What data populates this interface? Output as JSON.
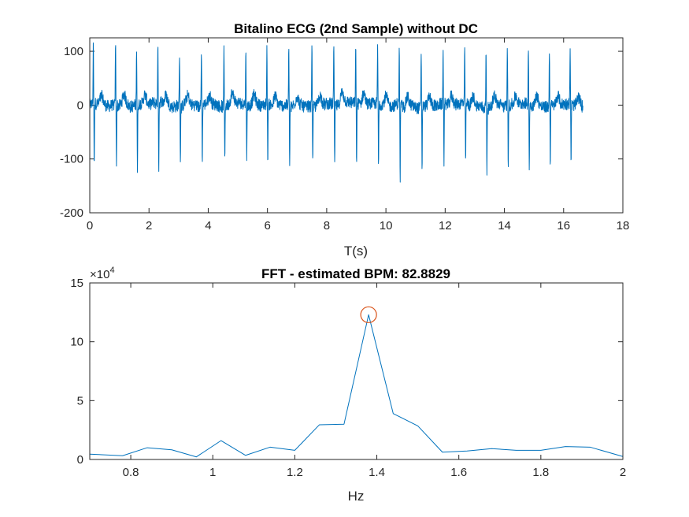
{
  "chart_data": [
    {
      "type": "line",
      "title": "Bitalino ECG (2nd Sample) without DC",
      "xlabel": "T(s)",
      "ylabel": "",
      "xlim": [
        0,
        18
      ],
      "ylim": [
        -200,
        125
      ],
      "xticks": [
        0,
        2,
        4,
        6,
        8,
        10,
        12,
        14,
        16,
        18
      ],
      "yticks": [
        -200,
        -100,
        0,
        100
      ],
      "color": "#0072BD",
      "signal": {
        "duration_s": 16.65,
        "beat_times": [
          0.12,
          0.87,
          1.58,
          2.3,
          3.03,
          3.77,
          4.53,
          5.27,
          5.98,
          6.72,
          7.5,
          8.24,
          8.98,
          9.72,
          10.45,
          11.19,
          11.93,
          12.66,
          13.38,
          14.1,
          14.81,
          15.52,
          16.22
        ],
        "beat_peaks": [
          118,
          117,
          108,
          100,
          99,
          102,
          100,
          104,
          101,
          104,
          121,
          104,
          100,
          105,
          103,
          104,
          103,
          104,
          100,
          104,
          107,
          104,
          105
        ],
        "beat_troughs": [
          -120,
          -112,
          -125,
          -124,
          -106,
          -107,
          -110,
          -112,
          -111,
          -112,
          -111,
          -117,
          -115,
          -120,
          -143,
          -117,
          -103,
          -112,
          -120,
          -118,
          -122,
          -107,
          -115
        ]
      }
    },
    {
      "type": "line",
      "title": "FFT - estimated BPM: 82.8829",
      "xlabel": "Hz",
      "ylabel": "",
      "y_exponent_label": "×10",
      "y_exponent": "4",
      "xlim": [
        0.7,
        2
      ],
      "ylim": [
        0,
        15
      ],
      "xticks": [
        0.8,
        1,
        1.2,
        1.4,
        1.6,
        1.8,
        2
      ],
      "yticks": [
        0,
        5,
        10,
        15
      ],
      "color": "#0072BD",
      "marker_color": "#D95319",
      "x": [
        0.7,
        0.78,
        0.84,
        0.9,
        0.96,
        1.02,
        1.08,
        1.14,
        1.2,
        1.26,
        1.32,
        1.38,
        1.44,
        1.5,
        1.56,
        1.62,
        1.68,
        1.74,
        1.8,
        1.86,
        1.92,
        2.0
      ],
      "y": [
        0.45,
        0.32,
        1.0,
        0.82,
        0.22,
        1.6,
        0.35,
        1.05,
        0.78,
        2.95,
        3.0,
        12.3,
        3.9,
        2.85,
        0.62,
        0.72,
        0.92,
        0.78,
        0.78,
        1.1,
        1.05,
        0.25
      ],
      "peak": {
        "x": 1.38,
        "y": 12.3
      }
    }
  ]
}
